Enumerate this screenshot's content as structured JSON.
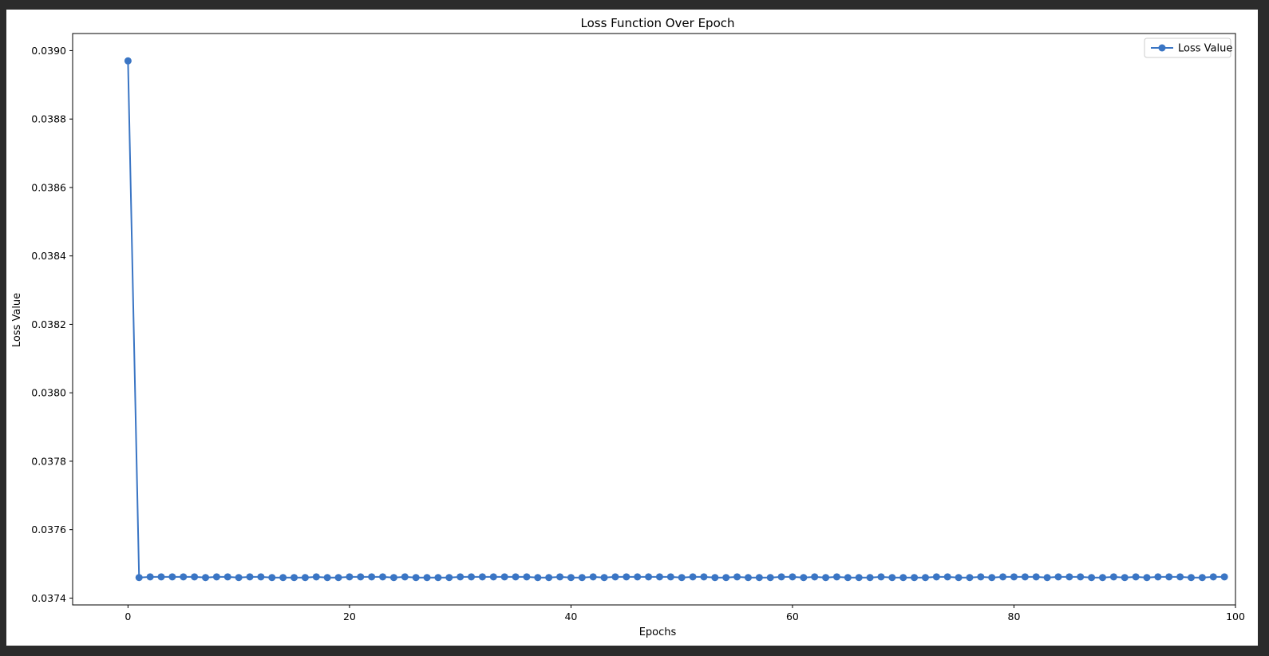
{
  "chart_data": {
    "type": "line",
    "title": "Loss Function Over Epoch",
    "xlabel": "Epochs",
    "ylabel": "Loss Value",
    "xlim": [
      -5,
      100
    ],
    "ylim": [
      0.03738,
      0.03905
    ],
    "xticks": [
      0,
      20,
      40,
      60,
      80,
      100
    ],
    "xtick_labels": [
      "0",
      "20",
      "40",
      "60",
      "80",
      "100"
    ],
    "yticks": [
      0.0374,
      0.0376,
      0.0378,
      0.038,
      0.0382,
      0.0384,
      0.0386,
      0.0388,
      0.039
    ],
    "ytick_labels": [
      "0.0374",
      "0.0376",
      "0.0378",
      "0.0380",
      "0.0382",
      "0.0384",
      "0.0386",
      "0.0388",
      "0.0390"
    ],
    "grid": false,
    "legend_position": "top-right",
    "series": [
      {
        "name": "Loss Value",
        "color": "#3a75c4",
        "marker": "circle",
        "x": [
          0,
          1,
          2,
          3,
          4,
          5,
          6,
          7,
          8,
          9,
          10,
          11,
          12,
          13,
          14,
          15,
          16,
          17,
          18,
          19,
          20,
          21,
          22,
          23,
          24,
          25,
          26,
          27,
          28,
          29,
          30,
          31,
          32,
          33,
          34,
          35,
          36,
          37,
          38,
          39,
          40,
          41,
          42,
          43,
          44,
          45,
          46,
          47,
          48,
          49,
          50,
          51,
          52,
          53,
          54,
          55,
          56,
          57,
          58,
          59,
          60,
          61,
          62,
          63,
          64,
          65,
          66,
          67,
          68,
          69,
          70,
          71,
          72,
          73,
          74,
          75,
          76,
          77,
          78,
          79,
          80,
          81,
          82,
          83,
          84,
          85,
          86,
          87,
          88,
          89,
          90,
          91,
          92,
          93,
          94,
          95,
          96,
          97,
          98,
          99
        ],
        "y": [
          0.03897,
          0.03746,
          0.037462,
          0.037462,
          0.037462,
          0.037462,
          0.037462,
          0.03746,
          0.037462,
          0.037462,
          0.03746,
          0.037462,
          0.037462,
          0.03746,
          0.03746,
          0.03746,
          0.03746,
          0.037462,
          0.03746,
          0.03746,
          0.037462,
          0.037462,
          0.037462,
          0.037462,
          0.03746,
          0.037462,
          0.03746,
          0.03746,
          0.03746,
          0.03746,
          0.037462,
          0.037462,
          0.037462,
          0.037462,
          0.037462,
          0.037462,
          0.037462,
          0.03746,
          0.03746,
          0.037462,
          0.03746,
          0.03746,
          0.037462,
          0.03746,
          0.037462,
          0.037462,
          0.037462,
          0.037462,
          0.037462,
          0.037462,
          0.03746,
          0.037462,
          0.037462,
          0.03746,
          0.03746,
          0.037462,
          0.03746,
          0.03746,
          0.03746,
          0.037462,
          0.037462,
          0.03746,
          0.037462,
          0.03746,
          0.037462,
          0.03746,
          0.03746,
          0.03746,
          0.037462,
          0.03746,
          0.03746,
          0.03746,
          0.03746,
          0.037462,
          0.037462,
          0.03746,
          0.03746,
          0.037462,
          0.03746,
          0.037462,
          0.037462,
          0.037462,
          0.037462,
          0.03746,
          0.037462,
          0.037462,
          0.037462,
          0.03746,
          0.03746,
          0.037462,
          0.03746,
          0.037462,
          0.03746,
          0.037462,
          0.037462,
          0.037462,
          0.03746,
          0.03746,
          0.037462,
          0.037462
        ]
      }
    ]
  }
}
